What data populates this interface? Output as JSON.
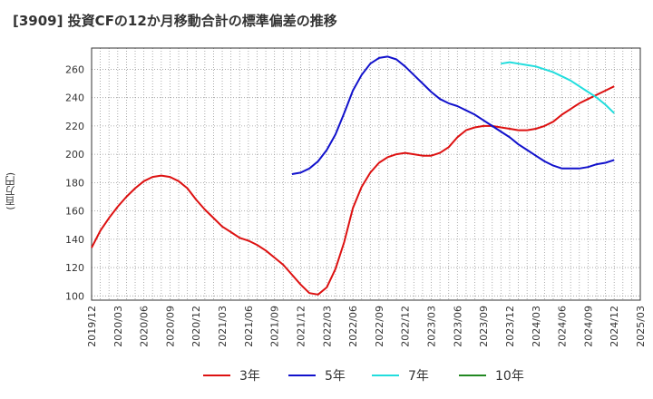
{
  "chart_data": {
    "type": "line",
    "title": "[3909]  投資CFの12か月移動合計の標準偏差の推移",
    "ylabel": "(百万円)",
    "ylim": [
      97,
      275
    ],
    "yticks": [
      100,
      120,
      140,
      160,
      180,
      200,
      220,
      240,
      260
    ],
    "xlim": [
      "2019/12",
      "2025/03"
    ],
    "xticks": [
      "2019/12",
      "2020/03",
      "2020/06",
      "2020/09",
      "2020/12",
      "2021/03",
      "2021/06",
      "2021/09",
      "2021/12",
      "2022/03",
      "2022/06",
      "2022/09",
      "2022/12",
      "2023/03",
      "2023/06",
      "2023/09",
      "2023/12",
      "2024/03",
      "2024/06",
      "2024/09",
      "2024/12",
      "2025/03"
    ],
    "grid": true,
    "legend_position": "bottom",
    "series": [
      {
        "name": "3年",
        "color": "#dd1111",
        "points": [
          [
            "2019/12",
            134
          ],
          [
            "2020/01",
            146
          ],
          [
            "2020/02",
            155
          ],
          [
            "2020/03",
            163
          ],
          [
            "2020/04",
            170
          ],
          [
            "2020/05",
            176
          ],
          [
            "2020/06",
            181
          ],
          [
            "2020/07",
            184
          ],
          [
            "2020/08",
            185
          ],
          [
            "2020/09",
            184
          ],
          [
            "2020/10",
            181
          ],
          [
            "2020/11",
            176
          ],
          [
            "2020/12",
            168
          ],
          [
            "2021/01",
            161
          ],
          [
            "2021/02",
            155
          ],
          [
            "2021/03",
            149
          ],
          [
            "2021/04",
            145
          ],
          [
            "2021/05",
            141
          ],
          [
            "2021/06",
            139
          ],
          [
            "2021/07",
            136
          ],
          [
            "2021/08",
            132
          ],
          [
            "2021/09",
            127
          ],
          [
            "2021/10",
            122
          ],
          [
            "2021/11",
            115
          ],
          [
            "2021/12",
            108
          ],
          [
            "2022/01",
            102
          ],
          [
            "2022/02",
            101
          ],
          [
            "2022/03",
            106
          ],
          [
            "2022/04",
            119
          ],
          [
            "2022/05",
            138
          ],
          [
            "2022/06",
            162
          ],
          [
            "2022/07",
            177
          ],
          [
            "2022/08",
            187
          ],
          [
            "2022/09",
            194
          ],
          [
            "2022/10",
            198
          ],
          [
            "2022/11",
            200
          ],
          [
            "2022/12",
            201
          ],
          [
            "2023/01",
            200
          ],
          [
            "2023/02",
            199
          ],
          [
            "2023/03",
            199
          ],
          [
            "2023/04",
            201
          ],
          [
            "2023/05",
            205
          ],
          [
            "2023/06",
            212
          ],
          [
            "2023/07",
            217
          ],
          [
            "2023/08",
            219
          ],
          [
            "2023/09",
            220
          ],
          [
            "2023/10",
            220
          ],
          [
            "2023/11",
            219
          ],
          [
            "2023/12",
            218
          ],
          [
            "2024/01",
            217
          ],
          [
            "2024/02",
            217
          ],
          [
            "2024/03",
            218
          ],
          [
            "2024/04",
            220
          ],
          [
            "2024/05",
            223
          ],
          [
            "2024/06",
            228
          ],
          [
            "2024/07",
            232
          ],
          [
            "2024/08",
            236
          ],
          [
            "2024/09",
            239
          ],
          [
            "2024/10",
            242
          ],
          [
            "2024/11",
            245
          ],
          [
            "2024/12",
            248
          ]
        ]
      },
      {
        "name": "5年",
        "color": "#1111cc",
        "points": [
          [
            "2021/11",
            186
          ],
          [
            "2021/12",
            187
          ],
          [
            "2022/01",
            190
          ],
          [
            "2022/02",
            195
          ],
          [
            "2022/03",
            203
          ],
          [
            "2022/04",
            214
          ],
          [
            "2022/05",
            229
          ],
          [
            "2022/06",
            245
          ],
          [
            "2022/07",
            256
          ],
          [
            "2022/08",
            264
          ],
          [
            "2022/09",
            268
          ],
          [
            "2022/10",
            269
          ],
          [
            "2022/11",
            267
          ],
          [
            "2022/12",
            262
          ],
          [
            "2023/01",
            256
          ],
          [
            "2023/02",
            250
          ],
          [
            "2023/03",
            244
          ],
          [
            "2023/04",
            239
          ],
          [
            "2023/05",
            236
          ],
          [
            "2023/06",
            234
          ],
          [
            "2023/07",
            231
          ],
          [
            "2023/08",
            228
          ],
          [
            "2023/09",
            224
          ],
          [
            "2023/10",
            220
          ],
          [
            "2023/11",
            216
          ],
          [
            "2023/12",
            212
          ],
          [
            "2024/01",
            207
          ],
          [
            "2024/02",
            203
          ],
          [
            "2024/03",
            199
          ],
          [
            "2024/04",
            195
          ],
          [
            "2024/05",
            192
          ],
          [
            "2024/06",
            190
          ],
          [
            "2024/07",
            190
          ],
          [
            "2024/08",
            190
          ],
          [
            "2024/09",
            191
          ],
          [
            "2024/10",
            193
          ],
          [
            "2024/11",
            194
          ],
          [
            "2024/12",
            196
          ]
        ]
      },
      {
        "name": "7年",
        "color": "#22dddd",
        "points": [
          [
            "2023/11",
            264
          ],
          [
            "2023/12",
            265
          ],
          [
            "2024/01",
            264
          ],
          [
            "2024/02",
            263
          ],
          [
            "2024/03",
            262
          ],
          [
            "2024/04",
            260
          ],
          [
            "2024/05",
            258
          ],
          [
            "2024/06",
            255
          ],
          [
            "2024/07",
            252
          ],
          [
            "2024/08",
            248
          ],
          [
            "2024/09",
            244
          ],
          [
            "2024/10",
            240
          ],
          [
            "2024/11",
            235
          ],
          [
            "2024/12",
            229
          ]
        ]
      },
      {
        "name": "10年",
        "color": "#228822",
        "points": []
      }
    ]
  }
}
